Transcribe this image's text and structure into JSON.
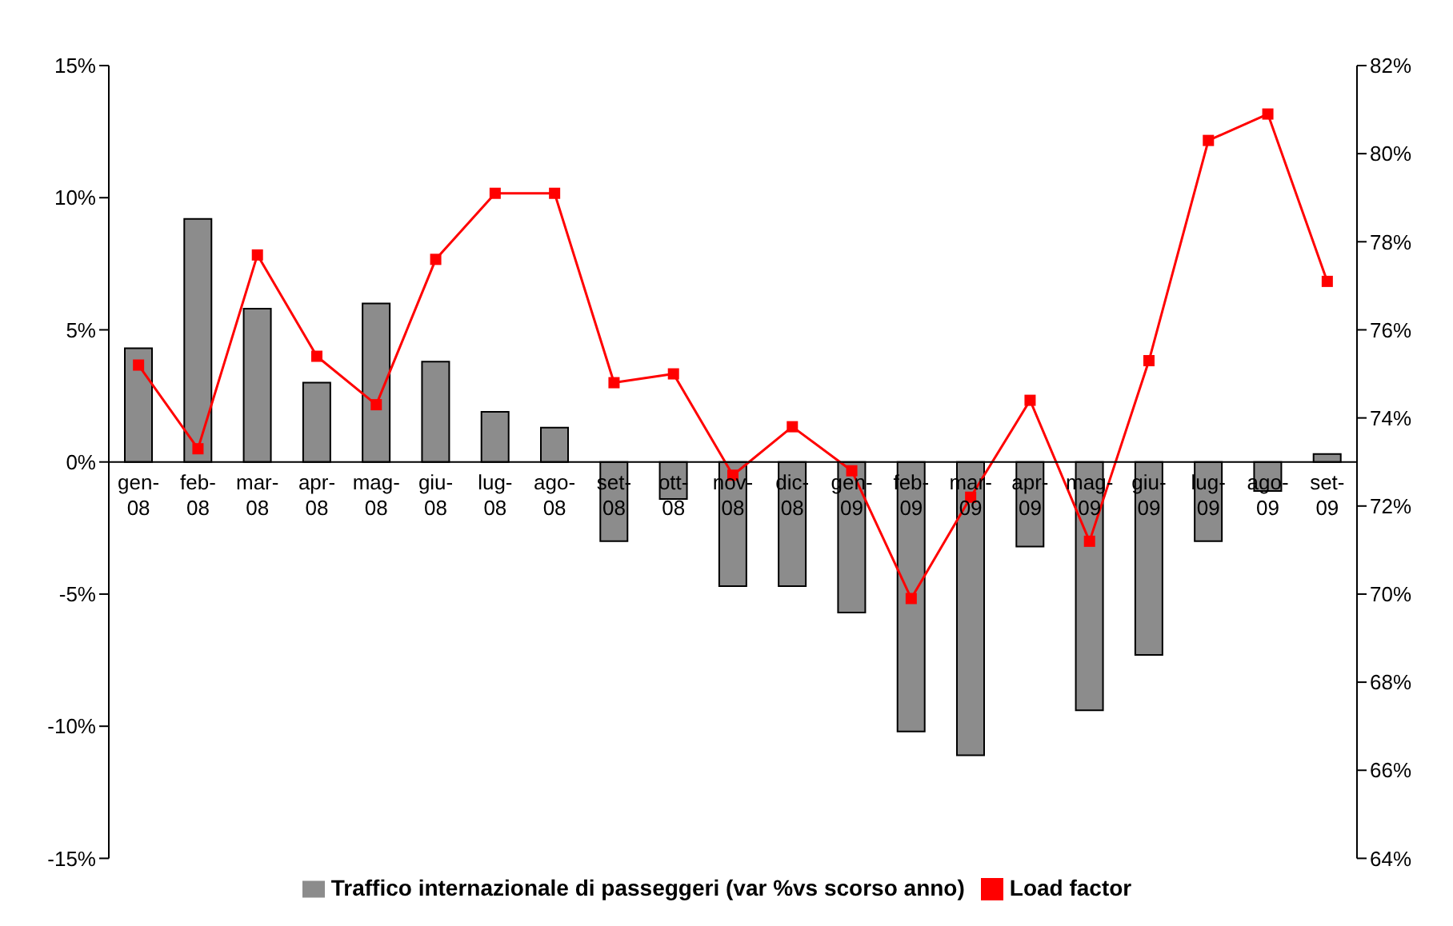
{
  "chart_data": {
    "type": "bar",
    "categories": [
      "gen-08",
      "feb-08",
      "mar-08",
      "apr-08",
      "mag-08",
      "giu-08",
      "lug-08",
      "ago-08",
      "set-08",
      "ott-08",
      "nov-08",
      "dic-08",
      "gen-09",
      "feb-09",
      "mar-09",
      "apr-09",
      "mag-09",
      "giu-09",
      "lug-09",
      "ago-09",
      "set-09"
    ],
    "series": [
      {
        "name": "Traffico internazionale di passeggeri (var %vs scorso anno)",
        "color": "#8c8c8c",
        "values": [
          4.3,
          9.2,
          5.8,
          3.0,
          6.0,
          3.8,
          1.9,
          1.3,
          -3.0,
          -1.4,
          -4.7,
          -4.7,
          -5.7,
          -10.2,
          -11.1,
          -3.2,
          -9.4,
          -7.3,
          -3.0,
          -1.1,
          0.3
        ]
      },
      {
        "name": "Load factor",
        "type": "line",
        "axis": "y2",
        "color": "#ff0000",
        "marker": "square",
        "values": [
          75.2,
          73.3,
          77.7,
          75.4,
          74.3,
          77.6,
          79.1,
          79.1,
          74.8,
          75.0,
          72.7,
          73.8,
          72.8,
          69.9,
          72.2,
          74.4,
          71.2,
          75.3,
          80.3,
          80.9,
          77.1
        ]
      }
    ],
    "ylim": [
      -15,
      15
    ],
    "yticks": [
      {
        "value": -15,
        "label": "-15%"
      },
      {
        "value": -10,
        "label": "-10%"
      },
      {
        "value": -5,
        "label": "-5%"
      },
      {
        "value": 0,
        "label": "0%"
      },
      {
        "value": 5,
        "label": "5%"
      },
      {
        "value": 10,
        "label": "10%"
      },
      {
        "value": 15,
        "label": "15%"
      }
    ],
    "y2lim": [
      64,
      82
    ],
    "y2ticks": [
      {
        "value": 64,
        "label": "64%"
      },
      {
        "value": 66,
        "label": "66%"
      },
      {
        "value": 68,
        "label": "68%"
      },
      {
        "value": 70,
        "label": "70%"
      },
      {
        "value": 72,
        "label": "72%"
      },
      {
        "value": 74,
        "label": "74%"
      },
      {
        "value": 76,
        "label": "76%"
      },
      {
        "value": 78,
        "label": "78%"
      },
      {
        "value": 80,
        "label": "80%"
      },
      {
        "value": 82,
        "label": "82%"
      }
    ],
    "grid": false,
    "legend": "bottom"
  }
}
